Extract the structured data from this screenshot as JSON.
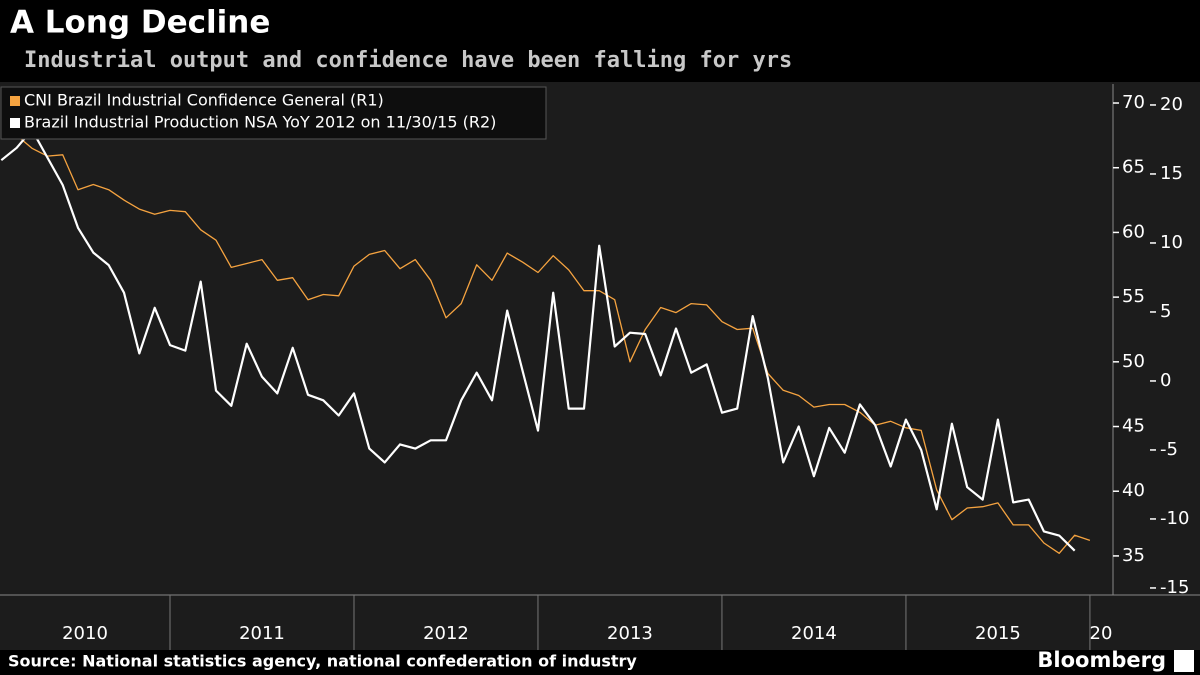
{
  "chart_data": {
    "type": "line",
    "title": "A Long Decline",
    "subtitle": "Industrial output and confidence have been falling for yrs",
    "source": "Source: National statistics agency, national confederation of industry",
    "brand": "Bloomberg",
    "x": [
      2010.083,
      2010.167,
      2010.25,
      2010.333,
      2010.417,
      2010.5,
      2010.583,
      2010.667,
      2010.75,
      2010.833,
      2010.917,
      2011,
      2011.083,
      2011.167,
      2011.25,
      2011.333,
      2011.417,
      2011.5,
      2011.583,
      2011.667,
      2011.75,
      2011.833,
      2011.917,
      2012,
      2012.083,
      2012.167,
      2012.25,
      2012.333,
      2012.417,
      2012.5,
      2012.583,
      2012.667,
      2012.75,
      2012.833,
      2012.917,
      2013,
      2013.083,
      2013.167,
      2013.25,
      2013.333,
      2013.417,
      2013.5,
      2013.583,
      2013.667,
      2013.75,
      2013.833,
      2013.917,
      2014,
      2014.083,
      2014.167,
      2014.25,
      2014.333,
      2014.417,
      2014.5,
      2014.583,
      2014.667,
      2014.75,
      2014.833,
      2014.917,
      2015,
      2015.083,
      2015.167,
      2015.25,
      2015.333,
      2015.417,
      2015.5,
      2015.583,
      2015.667,
      2015.75,
      2015.833,
      2015.917,
      2016
    ],
    "series": [
      {
        "name": "CNI Brazil Industrial Confidence General  (R1)",
        "color": "#f5a340",
        "axis": "y",
        "values": [
          68.7,
          67.5,
          66.5,
          65.9,
          66.0,
          63.3,
          63.7,
          63.3,
          62.5,
          61.8,
          61.4,
          61.7,
          61.6,
          60.2,
          59.4,
          57.3,
          57.6,
          57.9,
          56.3,
          56.5,
          54.8,
          55.2,
          55.1,
          57.4,
          58.3,
          58.6,
          57.2,
          57.9,
          56.3,
          53.4,
          54.5,
          57.5,
          56.3,
          58.4,
          57.7,
          56.9,
          58.2,
          57.1,
          55.5,
          55.5,
          54.8,
          50.0,
          52.5,
          54.2,
          53.8,
          54.5,
          54.4,
          53.1,
          52.5,
          52.6,
          49.1,
          47.8,
          47.4,
          46.5,
          46.7,
          46.7,
          46.1,
          45.1,
          45.4,
          44.9,
          44.7,
          40.1,
          37.8,
          38.7,
          38.8,
          39.1,
          37.4,
          37.4,
          36.0,
          35.2,
          36.6,
          36.2
        ]
      },
      {
        "name": "Brazil Industrial Production NSA YoY 2012  on 11/30/15 (R2)",
        "color": "#ffffff",
        "axis": "y2",
        "values": [
          16.0,
          16.9,
          18.2,
          16.2,
          14.2,
          11.1,
          9.3,
          8.4,
          6.4,
          2.0,
          5.3,
          2.6,
          2.2,
          7.2,
          -0.7,
          -1.8,
          2.7,
          0.3,
          -0.9,
          2.4,
          -1.0,
          -1.4,
          -2.5,
          -0.9,
          -4.9,
          -5.9,
          -4.6,
          -4.9,
          -4.3,
          -4.3,
          -1.4,
          0.6,
          -1.4,
          5.1,
          0.7,
          -3.6,
          6.4,
          -2.0,
          -2.0,
          9.8,
          2.5,
          3.5,
          3.4,
          0.4,
          3.8,
          0.6,
          1.2,
          -2.3,
          -2.0,
          4.7,
          0.2,
          -5.9,
          -3.3,
          -6.9,
          -3.4,
          -5.2,
          -1.7,
          -3.2,
          -6.2,
          -2.8,
          -5.0,
          -9.3,
          -3.1,
          -7.7,
          -8.6,
          -2.8,
          -8.8,
          -8.6,
          -10.9,
          -11.2,
          -12.3,
          null
        ]
      }
    ],
    "xlim": [
      2010.076,
      2016.12
    ],
    "xticks": [
      2010,
      2011,
      2012,
      2013,
      2014,
      2015,
      {
        "value": 2016,
        "label": "20"
      }
    ],
    "ylim": [
      31.98,
      71.47
    ],
    "yticks": [
      35,
      40,
      45,
      50,
      55,
      60,
      65,
      70
    ],
    "y2lim": [
      -15.51,
      21.52
    ],
    "y2ticks": [
      -15,
      -10,
      -5,
      0,
      5,
      10,
      15,
      20
    ],
    "grid": false,
    "legend": "upper left"
  }
}
